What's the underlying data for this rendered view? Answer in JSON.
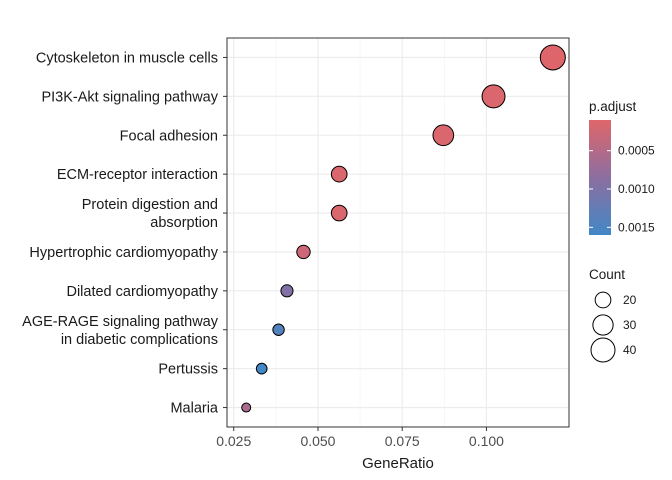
{
  "chart_data": {
    "type": "scatter",
    "xlabel": "GeneRatio",
    "ylabel": "",
    "xlim": [
      0.023,
      0.1245
    ],
    "x_ticks": [
      0.025,
      0.05,
      0.075,
      0.1
    ],
    "x_tick_labels": [
      "0.025",
      "0.050",
      "0.075",
      "0.100"
    ],
    "grid": true,
    "categories": [
      [
        "Cytoskeleton in muscle cells"
      ],
      [
        "PI3K-Akt signaling pathway"
      ],
      [
        "Focal adhesion"
      ],
      [
        "ECM-receptor interaction"
      ],
      [
        "Protein digestion and",
        "absorption"
      ],
      [
        "Hypertrophic cardiomyopathy"
      ],
      [
        "Dilated cardiomyopathy"
      ],
      [
        "AGE-RAGE signaling pathway",
        "in diabetic complications"
      ],
      [
        "Pertussis"
      ],
      [
        "Malaria"
      ]
    ],
    "points": [
      {
        "gene_ratio": 0.1197,
        "count": 43,
        "p_adjust": 0.00012
      },
      {
        "gene_ratio": 0.1021,
        "count": 37,
        "p_adjust": 0.00015
      },
      {
        "gene_ratio": 0.0872,
        "count": 31,
        "p_adjust": 0.00015
      },
      {
        "gene_ratio": 0.0563,
        "count": 20,
        "p_adjust": 0.00015
      },
      {
        "gene_ratio": 0.0563,
        "count": 20,
        "p_adjust": 0.00015
      },
      {
        "gene_ratio": 0.0457,
        "count": 16,
        "p_adjust": 0.00028
      },
      {
        "gene_ratio": 0.0408,
        "count": 14,
        "p_adjust": 0.00095
      },
      {
        "gene_ratio": 0.0383,
        "count": 13,
        "p_adjust": 0.00145
      },
      {
        "gene_ratio": 0.0333,
        "count": 12,
        "p_adjust": 0.0016
      },
      {
        "gene_ratio": 0.0287,
        "count": 10,
        "p_adjust": 0.0006
      }
    ],
    "legend_color": {
      "title": "p.adjust",
      "range": [
        0.0001,
        0.0016
      ],
      "ticks": [
        0.0005,
        0.001,
        0.0015
      ],
      "tick_labels": [
        "0.0005",
        "0.0010",
        "0.0015"
      ],
      "low_color": "#e0666a",
      "high_color": "#4287c6"
    },
    "legend_size": {
      "title": "Count",
      "values": [
        20,
        30,
        40
      ],
      "labels": [
        "20",
        "30",
        "40"
      ]
    },
    "legend_placement": "right"
  }
}
